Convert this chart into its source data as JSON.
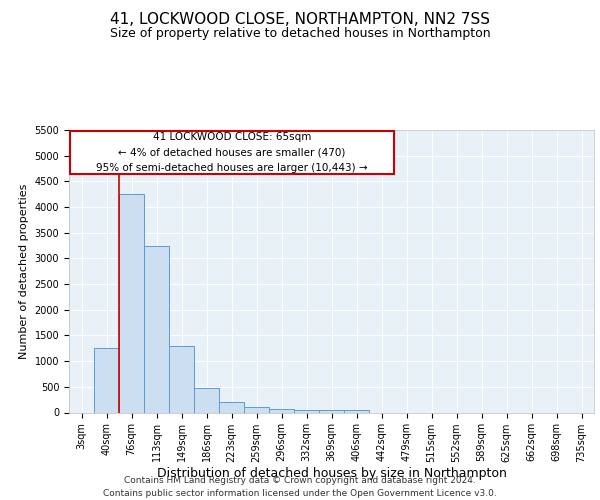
{
  "title": "41, LOCKWOOD CLOSE, NORTHAMPTON, NN2 7SS",
  "subtitle": "Size of property relative to detached houses in Northampton",
  "xlabel": "Distribution of detached houses by size in Northampton",
  "ylabel": "Number of detached properties",
  "categories": [
    "3sqm",
    "40sqm",
    "76sqm",
    "113sqm",
    "149sqm",
    "186sqm",
    "223sqm",
    "259sqm",
    "296sqm",
    "332sqm",
    "369sqm",
    "406sqm",
    "442sqm",
    "479sqm",
    "515sqm",
    "552sqm",
    "589sqm",
    "625sqm",
    "662sqm",
    "698sqm",
    "735sqm"
  ],
  "values": [
    0,
    1250,
    4250,
    3250,
    1300,
    480,
    200,
    110,
    70,
    55,
    50,
    45,
    0,
    0,
    0,
    0,
    0,
    0,
    0,
    0,
    0
  ],
  "bar_color": "#ccdff0",
  "bar_edge_color": "#5b9bd5",
  "red_line_x": 1.5,
  "annotation_title": "41 LOCKWOOD CLOSE: 65sqm",
  "annotation_line1": "← 4% of detached houses are smaller (470)",
  "annotation_line2": "95% of semi-detached houses are larger (10,443) →",
  "annotation_box_facecolor": "#ffffff",
  "annotation_box_edgecolor": "#cc0000",
  "ylim_max": 5500,
  "yticks": [
    0,
    500,
    1000,
    1500,
    2000,
    2500,
    3000,
    3500,
    4000,
    4500,
    5000,
    5500
  ],
  "footer_line1": "Contains HM Land Registry data © Crown copyright and database right 2024.",
  "footer_line2": "Contains public sector information licensed under the Open Government Licence v3.0.",
  "bg_color": "#e8f0f8",
  "grid_color": "#ffffff",
  "title_fontsize": 11,
  "subtitle_fontsize": 9,
  "ylabel_fontsize": 8,
  "xlabel_fontsize": 9,
  "tick_fontsize": 7,
  "annot_fontsize": 7.5,
  "footer_fontsize": 6.5
}
